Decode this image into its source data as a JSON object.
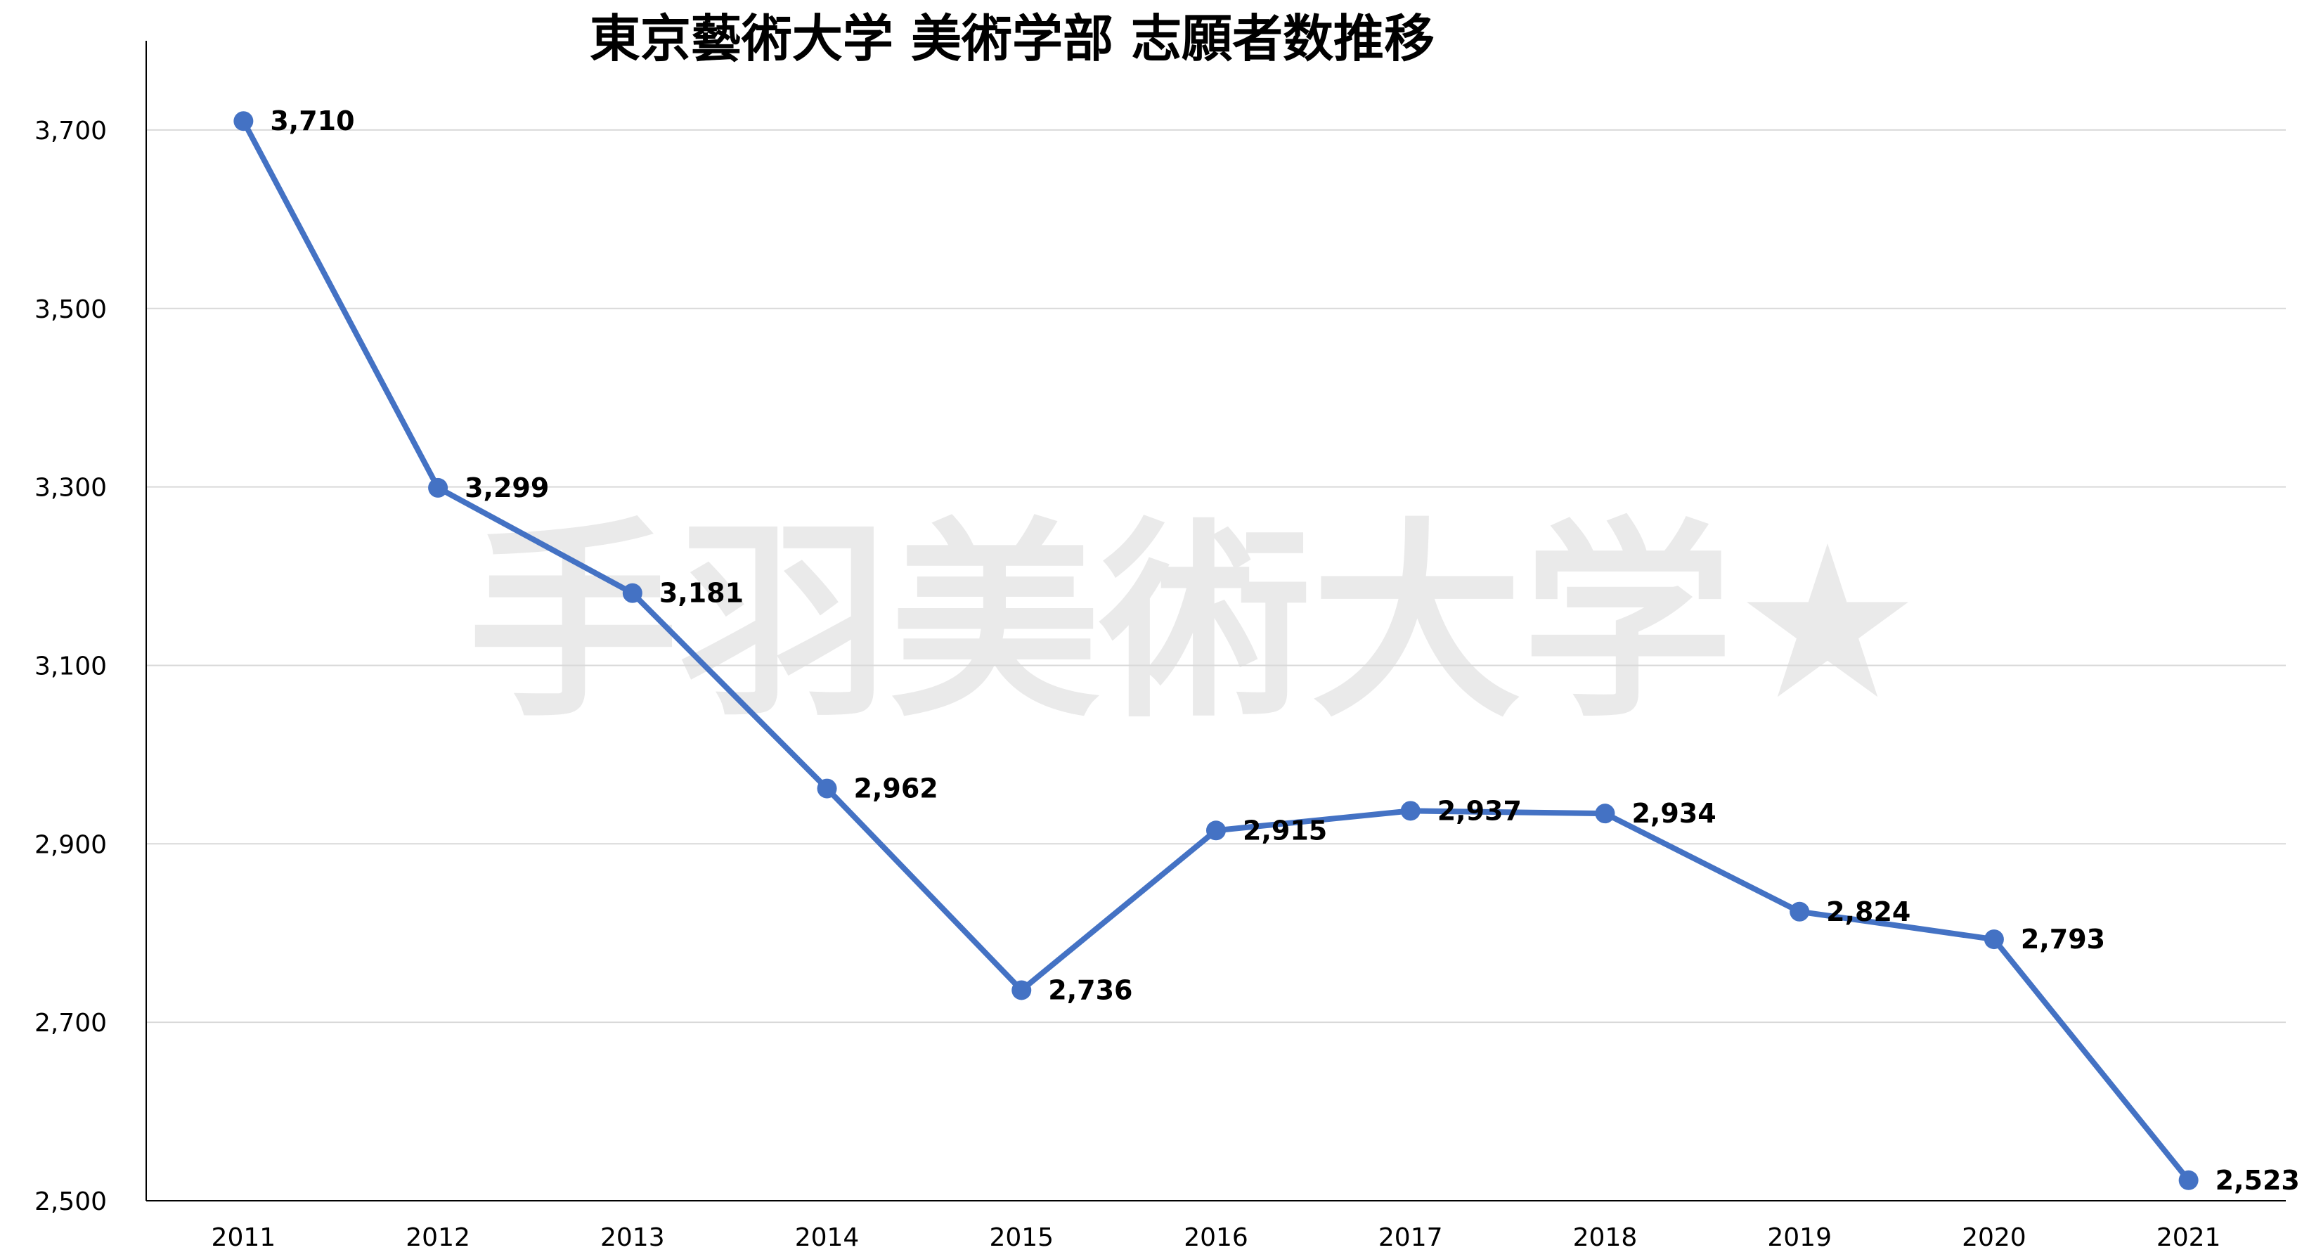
{
  "chart_data": {
    "type": "line",
    "title": "東京藝術大学 美術学部 志願者数推移",
    "xlabel": "",
    "ylabel": "",
    "categories": [
      "2011",
      "2012",
      "2013",
      "2014",
      "2015",
      "2016",
      "2017",
      "2018",
      "2019",
      "2020",
      "2021"
    ],
    "series": [
      {
        "values": [
          3710,
          3299,
          3181,
          2962,
          2736,
          2915,
          2937,
          2934,
          2824,
          2793,
          2523
        ],
        "labels": [
          "3,710",
          "3,299",
          "3,181",
          "2,962",
          "2,736",
          "2,915",
          "2,937",
          "2,934",
          "2,824",
          "2,793",
          "2,523"
        ],
        "color": "#4472c4"
      }
    ],
    "ylim": [
      2500,
      3800
    ],
    "yticks": [
      2500,
      2700,
      2900,
      3100,
      3300,
      3500,
      3700
    ],
    "ytick_labels": [
      "2,500",
      "2,700",
      "2,900",
      "3,100",
      "3,300",
      "3,500",
      "3,700"
    ],
    "grid": true,
    "legend": "none",
    "colors": {
      "line": "#4472c4",
      "grid": "#d9d9d9",
      "axis": "#000000",
      "watermark": "#d9d9d9"
    }
  },
  "watermark": {
    "text": "手羽美術大学★"
  }
}
